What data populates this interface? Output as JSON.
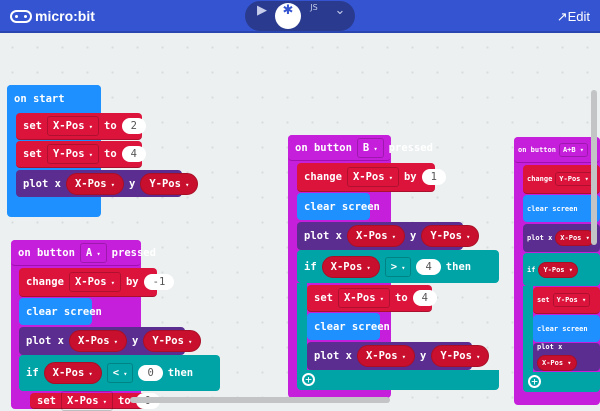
{
  "topbar": {
    "logo": "micro:bit",
    "modes": [
      {
        "icon": "play-icon",
        "glyph": "▶"
      },
      {
        "icon": "blocks-icon",
        "glyph": "✱"
      },
      {
        "icon": "javascript-icon",
        "glyph": "JS"
      },
      {
        "icon": "chevron-down-icon",
        "glyph": "⌄"
      }
    ],
    "active_mode": 1,
    "edit_label": "Edit",
    "edit_icon": "external-edit-icon"
  },
  "colors": {
    "topbar": "#3454d1",
    "events": "#c61fdb",
    "variables": "#dc143c",
    "basic": "#1e90ff",
    "led": "#5c2d91",
    "logic": "#00a4a6"
  },
  "blocks": [
    {
      "title": [
        {
          "t": "text",
          "v": "on start"
        }
      ],
      "rows": [
        [
          {
            "t": "text",
            "v": "set"
          },
          {
            "t": "sq",
            "v": "X-Pos"
          },
          {
            "t": "text",
            "v": "to"
          },
          {
            "t": "num",
            "v": "2"
          }
        ],
        [
          {
            "t": "text",
            "v": "set"
          },
          {
            "t": "sq",
            "v": "Y-Pos"
          },
          {
            "t": "text",
            "v": "to"
          },
          {
            "t": "num",
            "v": "4"
          }
        ],
        [
          {
            "t": "text",
            "v": "plot x"
          },
          {
            "t": "pill",
            "v": "X-Pos"
          },
          {
            "t": "text",
            "v": "y"
          },
          {
            "t": "pill",
            "v": "Y-Pos"
          }
        ]
      ]
    },
    {
      "title": [
        {
          "t": "text",
          "v": "on button"
        },
        {
          "t": "sq",
          "v": "A"
        },
        {
          "t": "text",
          "v": "pressed"
        }
      ],
      "rows": [
        [
          {
            "t": "text",
            "v": "change"
          },
          {
            "t": "sq",
            "v": "X-Pos"
          },
          {
            "t": "text",
            "v": "by"
          },
          {
            "t": "num",
            "v": "-1"
          }
        ],
        [
          {
            "t": "text",
            "v": "clear screen"
          }
        ],
        [
          {
            "t": "text",
            "v": "plot x"
          },
          {
            "t": "pill",
            "v": "X-Pos"
          },
          {
            "t": "text",
            "v": "y"
          },
          {
            "t": "pill",
            "v": "Y-Pos"
          }
        ],
        [
          {
            "t": "text",
            "v": "if"
          },
          {
            "t": "pill",
            "v": "X-Pos"
          },
          {
            "t": "sq",
            "v": "<"
          },
          {
            "t": "num",
            "v": "0"
          },
          {
            "t": "text",
            "v": "then"
          }
        ],
        [
          {
            "t": "text",
            "v": "set"
          },
          {
            "t": "sq",
            "v": "X-Pos"
          },
          {
            "t": "text",
            "v": "to"
          },
          {
            "t": "num",
            "v": "0"
          }
        ]
      ]
    },
    {
      "title": [
        {
          "t": "text",
          "v": "on button"
        },
        {
          "t": "sq",
          "v": "B"
        },
        {
          "t": "text",
          "v": "pressed"
        }
      ],
      "rows": [
        [
          {
            "t": "text",
            "v": "change"
          },
          {
            "t": "sq",
            "v": "X-Pos"
          },
          {
            "t": "text",
            "v": "by"
          },
          {
            "t": "num",
            "v": "1"
          }
        ],
        [
          {
            "t": "text",
            "v": "clear screen"
          }
        ],
        [
          {
            "t": "text",
            "v": "plot x"
          },
          {
            "t": "pill",
            "v": "X-Pos"
          },
          {
            "t": "text",
            "v": "y"
          },
          {
            "t": "pill",
            "v": "Y-Pos"
          }
        ],
        [
          {
            "t": "text",
            "v": "if"
          },
          {
            "t": "pill",
            "v": "X-Pos"
          },
          {
            "t": "sq",
            "v": ">"
          },
          {
            "t": "num",
            "v": "4"
          },
          {
            "t": "text",
            "v": "then"
          }
        ],
        [
          {
            "t": "text",
            "v": "set"
          },
          {
            "t": "sq",
            "v": "X-Pos"
          },
          {
            "t": "text",
            "v": "to"
          },
          {
            "t": "num",
            "v": "4"
          }
        ],
        [
          {
            "t": "text",
            "v": "clear screen"
          }
        ],
        [
          {
            "t": "text",
            "v": "plot x"
          },
          {
            "t": "pill",
            "v": "X-Pos"
          },
          {
            "t": "text",
            "v": "y"
          },
          {
            "t": "pill",
            "v": "Y-Pos"
          }
        ]
      ]
    },
    {
      "title": [
        {
          "t": "text",
          "v": "on button"
        },
        {
          "t": "sq",
          "v": "A+B"
        }
      ],
      "rows": [
        [
          {
            "t": "text",
            "v": "change"
          },
          {
            "t": "sq",
            "v": "Y-Pos"
          }
        ],
        [
          {
            "t": "text",
            "v": "clear screen"
          }
        ],
        [
          {
            "t": "text",
            "v": "plot x"
          },
          {
            "t": "pill",
            "v": "X-Pos"
          }
        ],
        [
          {
            "t": "text",
            "v": "if"
          },
          {
            "t": "pill",
            "v": "Y-Pos"
          }
        ],
        [
          {
            "t": "text",
            "v": "set"
          },
          {
            "t": "sq",
            "v": "Y-Pos"
          }
        ],
        [
          {
            "t": "text",
            "v": "clear screen"
          }
        ],
        [
          {
            "t": "text",
            "v": "plot x"
          },
          {
            "t": "pill",
            "v": "X-Pos"
          }
        ]
      ]
    }
  ]
}
